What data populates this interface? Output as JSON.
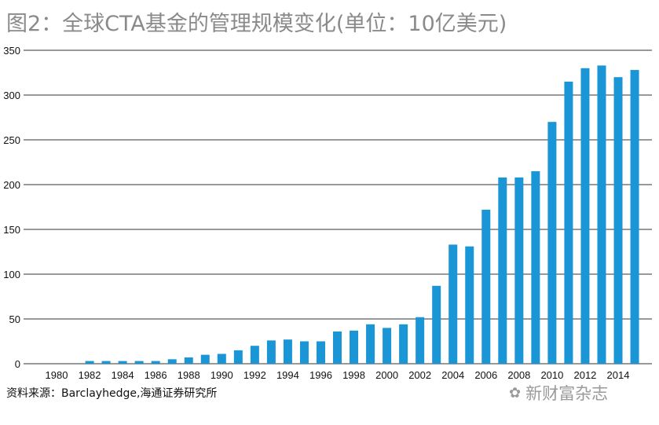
{
  "title": "图2：全球CTA基金的管理规模变化(单位：10亿美元)",
  "source": "资料来源：Barclayhedge,海通证券研究所",
  "watermark": "新财富杂志",
  "chart_data": {
    "type": "bar",
    "title": "图2：全球CTA基金的管理规模变化(单位：10亿美元)",
    "categories": [
      1980,
      1981,
      1982,
      1983,
      1984,
      1985,
      1986,
      1987,
      1988,
      1989,
      1990,
      1991,
      1992,
      1993,
      1994,
      1995,
      1996,
      1997,
      1998,
      1999,
      2000,
      2001,
      2002,
      2003,
      2004,
      2005,
      2006,
      2007,
      2008,
      2009,
      2010,
      2011,
      2012,
      2013,
      2014,
      2015
    ],
    "values": [
      0,
      0,
      3,
      3,
      3,
      3,
      3,
      5,
      7,
      10,
      11,
      15,
      20,
      26,
      27,
      25,
      25,
      36,
      37,
      44,
      40,
      44,
      52,
      87,
      133,
      131,
      172,
      208,
      208,
      215,
      270,
      315,
      330,
      333,
      320,
      328
    ],
    "x_tick_labels": [
      "1980",
      "1982",
      "1984",
      "1986",
      "1988",
      "1990",
      "1992",
      "1994",
      "1996",
      "1998",
      "2000",
      "2002",
      "2004",
      "2006",
      "2008",
      "2010",
      "2012",
      "2014"
    ],
    "y_ticks": [
      0,
      50,
      100,
      150,
      200,
      250,
      300,
      350
    ],
    "ylim": [
      0,
      350
    ],
    "grid": true,
    "bar_color": "#1a95d6",
    "grid_color": "#333333"
  }
}
